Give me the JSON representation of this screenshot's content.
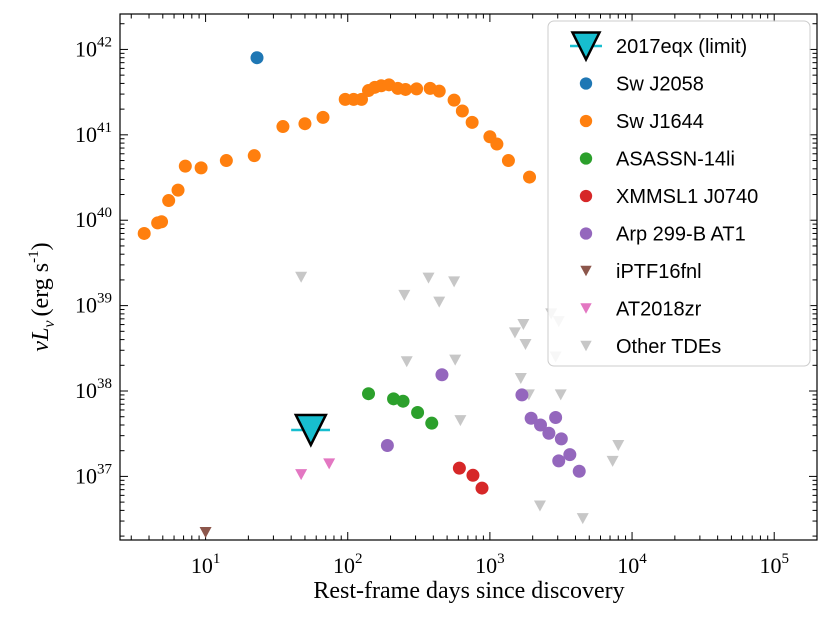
{
  "chart_data": {
    "type": "scatter",
    "xscale": "log",
    "yscale": "log",
    "xlim": [
      2.5,
      200000
    ],
    "ylim": [
      1.8e+36,
      2.6e+42
    ],
    "xlabel": "Rest-frame days since discovery",
    "ylabel_parts": {
      "nu": "ν",
      "L": "L",
      "sub": "ν",
      "units": "(erg s",
      "exp": "-1",
      "close": ")"
    },
    "xticks": [
      {
        "base": "10",
        "exp": "1",
        "value": 10
      },
      {
        "base": "10",
        "exp": "2",
        "value": 100
      },
      {
        "base": "10",
        "exp": "3",
        "value": 1000
      },
      {
        "base": "10",
        "exp": "4",
        "value": 10000
      },
      {
        "base": "10",
        "exp": "5",
        "value": 100000
      }
    ],
    "yticks": [
      {
        "base": "10",
        "exp": "37",
        "value": 1e+37
      },
      {
        "base": "10",
        "exp": "38",
        "value": 1e+38
      },
      {
        "base": "10",
        "exp": "39",
        "value": 1e+39
      },
      {
        "base": "10",
        "exp": "40",
        "value": 1e+40
      },
      {
        "base": "10",
        "exp": "41",
        "value": 1e+41
      },
      {
        "base": "10",
        "exp": "42",
        "value": 1e+42
      }
    ],
    "legend_location": "top-right",
    "series": [
      {
        "name": "2017eqx (limit)",
        "key": "2017eqx",
        "marker": "triangle-down-large",
        "color": "#17becf",
        "edge": "#000000",
        "points": [
          [
            55,
            3.5e+37
          ]
        ],
        "hline": {
          "x0": 40,
          "x1": 75,
          "y": 3.5e+37
        }
      },
      {
        "name": "Sw J2058",
        "key": "swj2058",
        "marker": "circle",
        "color": "#1f77b4",
        "points": [
          [
            23,
            8e+41
          ]
        ]
      },
      {
        "name": "Sw J1644",
        "key": "swj1644",
        "marker": "circle",
        "color": "#ff7f0e",
        "points": [
          [
            3.7,
            7e+39
          ],
          [
            4.6,
            9.3e+39
          ],
          [
            4.9,
            9.6e+39
          ],
          [
            5.5,
            1.7e+40
          ],
          [
            6.4,
            2.25e+40
          ],
          [
            7.2,
            4.3e+40
          ],
          [
            9.3,
            4.1e+40
          ],
          [
            14,
            5e+40
          ],
          [
            22,
            5.7e+40
          ],
          [
            35,
            1.25e+41
          ],
          [
            50,
            1.35e+41
          ],
          [
            67,
            1.6e+41
          ],
          [
            96,
            2.6e+41
          ],
          [
            110,
            2.6e+41
          ],
          [
            125,
            2.6e+41
          ],
          [
            140,
            3.3e+41
          ],
          [
            155,
            3.6e+41
          ],
          [
            172,
            3.75e+41
          ],
          [
            195,
            3.85e+41
          ],
          [
            225,
            3.5e+41
          ],
          [
            255,
            3.4e+41
          ],
          [
            305,
            3.45e+41
          ],
          [
            380,
            3.5e+41
          ],
          [
            440,
            3.25e+41
          ],
          [
            560,
            2.55e+41
          ],
          [
            640,
            1.9e+41
          ],
          [
            750,
            1.4e+41
          ],
          [
            1000,
            9.5e+40
          ],
          [
            1120,
            7.8e+40
          ],
          [
            1350,
            5e+40
          ],
          [
            1900,
            3.2e+40
          ]
        ]
      },
      {
        "name": "ASASSN-14li",
        "key": "asassn14li",
        "marker": "circle",
        "color": "#2ca02c",
        "points": [
          [
            140,
            9.3e+37
          ],
          [
            210,
            8.1e+37
          ],
          [
            245,
            7.6e+37
          ],
          [
            310,
            5.6e+37
          ],
          [
            390,
            4.2e+37
          ]
        ]
      },
      {
        "name": "XMMSL1 J0740",
        "key": "xmmsl1",
        "marker": "circle",
        "color": "#d62728",
        "points": [
          [
            610,
            1.25e+37
          ],
          [
            760,
            1.03e+37
          ],
          [
            880,
            7.3e+36
          ]
        ]
      },
      {
        "name": "Arp 299-B AT1",
        "key": "arp299",
        "marker": "circle",
        "color": "#9467bd",
        "points": [
          [
            190,
            2.3e+37
          ],
          [
            460,
            1.55e+38
          ],
          [
            1680,
            9e+37
          ],
          [
            1950,
            4.8e+37
          ],
          [
            2270,
            4e+37
          ],
          [
            2600,
            3.2e+37
          ],
          [
            2900,
            4.9e+37
          ],
          [
            3050,
            1.52e+37
          ],
          [
            3180,
            2.75e+37
          ],
          [
            3650,
            1.8e+37
          ],
          [
            4250,
            1.15e+37
          ]
        ]
      },
      {
        "name": "iPTF16fnl",
        "key": "iptf16fnl",
        "marker": "triangle-down",
        "color": "#8c564b",
        "points": [
          [
            10,
            2.2e+36
          ]
        ]
      },
      {
        "name": "AT2018zr",
        "key": "at2018zr",
        "marker": "triangle-down",
        "color": "#e377c2",
        "points": [
          [
            47,
            1.05e+37
          ],
          [
            74,
            1.4e+37
          ]
        ]
      },
      {
        "name": "Other TDEs",
        "key": "other",
        "marker": "triangle-down",
        "color": "#c7c7c7",
        "points": [
          [
            47,
            2.15e+39
          ],
          [
            250,
            1.32e+39
          ],
          [
            260,
            2.2e+38
          ],
          [
            370,
            2.1e+39
          ],
          [
            440,
            1.1e+39
          ],
          [
            560,
            1.9e+39
          ],
          [
            570,
            2.3e+38
          ],
          [
            620,
            4.5e+37
          ],
          [
            1500,
            4.8e+38
          ],
          [
            1650,
            1.4e+38
          ],
          [
            1720,
            6e+38
          ],
          [
            1780,
            3.5e+38
          ],
          [
            1880,
            9e+37
          ],
          [
            2250,
            4.5e+36
          ],
          [
            2700,
            8e+38
          ],
          [
            2900,
            2.5e+38
          ],
          [
            3050,
            6.5e+38
          ],
          [
            3150,
            9e+37
          ],
          [
            4500,
            3.2e+36
          ],
          [
            7300,
            1.5e+37
          ],
          [
            8000,
            2.3e+37
          ]
        ]
      }
    ]
  }
}
